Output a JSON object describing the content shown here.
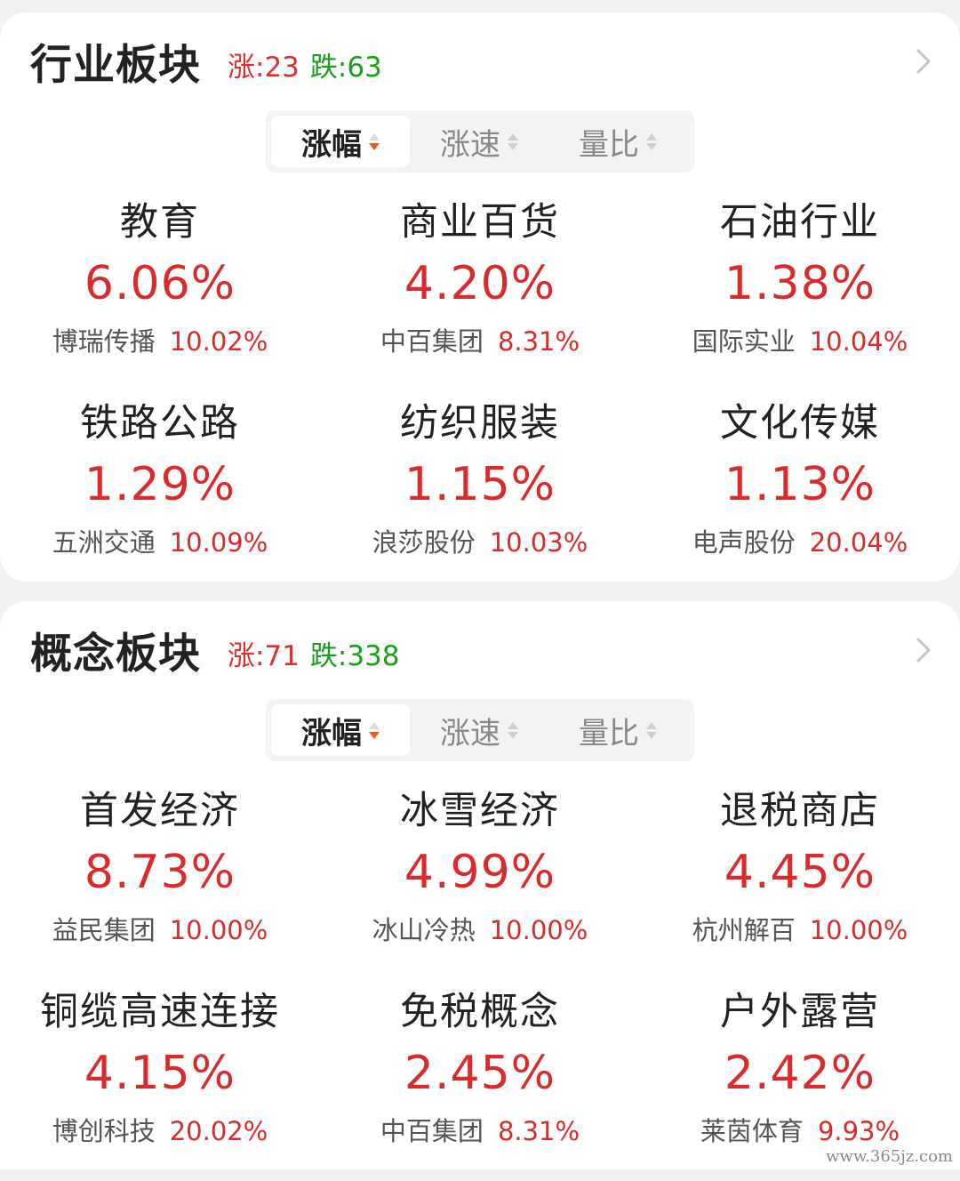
{
  "industry": {
    "title": "行业板块",
    "up_count": "涨:23",
    "down_count": "跌:63",
    "tabs": [
      {
        "label": "涨幅",
        "active": true
      },
      {
        "label": "涨速",
        "active": false
      },
      {
        "label": "量比",
        "active": false
      }
    ],
    "sectors": [
      {
        "name": "教育",
        "change": "6.06%",
        "leader": "博瑞传播",
        "leader_change": "10.02%"
      },
      {
        "name": "商业百货",
        "change": "4.20%",
        "leader": "中百集团",
        "leader_change": "8.31%"
      },
      {
        "name": "石油行业",
        "change": "1.38%",
        "leader": "国际实业",
        "leader_change": "10.04%"
      },
      {
        "name": "铁路公路",
        "change": "1.29%",
        "leader": "五洲交通",
        "leader_change": "10.09%"
      },
      {
        "name": "纺织服装",
        "change": "1.15%",
        "leader": "浪莎股份",
        "leader_change": "10.03%"
      },
      {
        "name": "文化传媒",
        "change": "1.13%",
        "leader": "电声股份",
        "leader_change": "20.04%"
      }
    ]
  },
  "concept": {
    "title": "概念板块",
    "up_count": "涨:71",
    "down_count": "跌:338",
    "tabs": [
      {
        "label": "涨幅",
        "active": true
      },
      {
        "label": "涨速",
        "active": false
      },
      {
        "label": "量比",
        "active": false
      }
    ],
    "sectors": [
      {
        "name": "首发经济",
        "change": "8.73%",
        "leader": "益民集团",
        "leader_change": "10.00%"
      },
      {
        "name": "冰雪经济",
        "change": "4.99%",
        "leader": "冰山冷热",
        "leader_change": "10.00%"
      },
      {
        "name": "退税商店",
        "change": "4.45%",
        "leader": "杭州解百",
        "leader_change": "10.00%"
      },
      {
        "name": "铜缆高速连接",
        "change": "4.15%",
        "leader": "博创科技",
        "leader_change": "20.02%"
      },
      {
        "name": "免税概念",
        "change": "2.45%",
        "leader": "中百集团",
        "leader_change": "8.31%"
      },
      {
        "name": "户外露营",
        "change": "2.42%",
        "leader": "莱茵体育",
        "leader_change": "9.93%"
      }
    ]
  },
  "colors": {
    "rise": "#d92b2b",
    "fall": "#18a018",
    "sort_active_arrow": "#f05a1a"
  },
  "icons": {
    "more": "chevron-right-icon",
    "sort": "sort-arrows-icon"
  },
  "watermark": "www.365jz.com"
}
